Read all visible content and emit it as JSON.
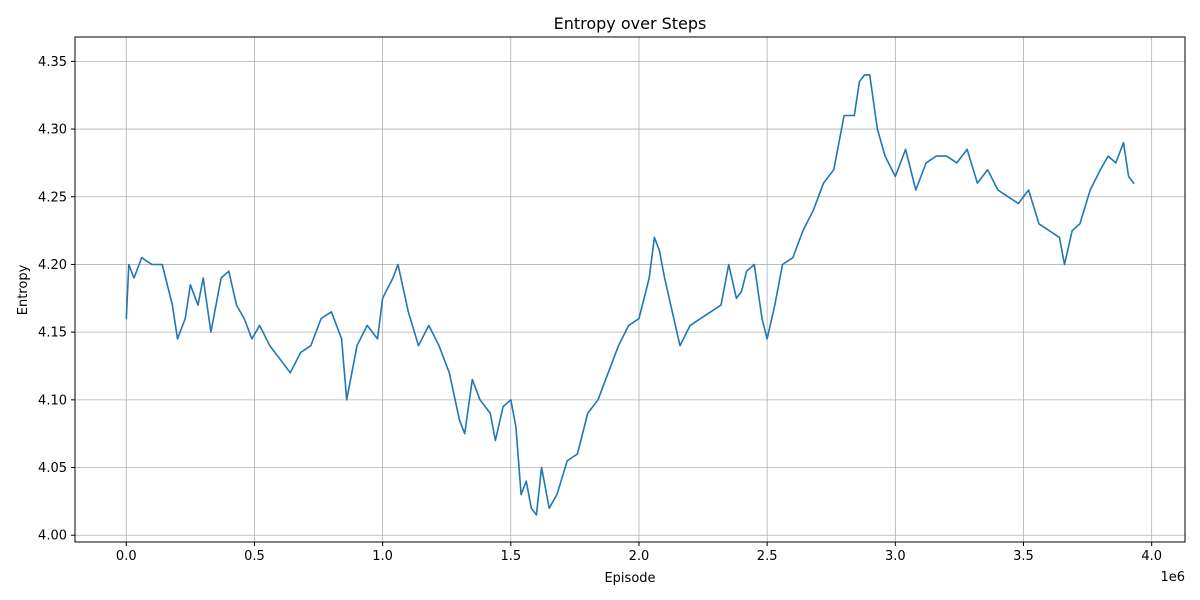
{
  "chart_data": {
    "type": "line",
    "title": "Entropy over Steps",
    "xlabel": "Episode",
    "ylabel": "Entropy",
    "x_offset_label": "1e6",
    "xlim": [
      -200000,
      4130000
    ],
    "ylim": [
      3.995,
      4.368
    ],
    "x_ticks": [
      0,
      500000,
      1000000,
      1500000,
      2000000,
      2500000,
      3000000,
      3500000,
      4000000
    ],
    "x_tick_labels": [
      "0.0",
      "0.5",
      "1.0",
      "1.5",
      "2.0",
      "2.5",
      "3.0",
      "3.5",
      "4.0"
    ],
    "y_ticks": [
      4.0,
      4.05,
      4.1,
      4.15,
      4.2,
      4.25,
      4.3,
      4.35
    ],
    "y_tick_labels": [
      "4.00",
      "4.05",
      "4.10",
      "4.15",
      "4.20",
      "4.25",
      "4.30",
      "4.35"
    ],
    "grid": true,
    "series": [
      {
        "color": "#1f77b4",
        "x": [
          0,
          10000,
          30000,
          60000,
          100000,
          140000,
          180000,
          200000,
          230000,
          250000,
          280000,
          300000,
          330000,
          370000,
          400000,
          430000,
          460000,
          490000,
          520000,
          560000,
          600000,
          640000,
          680000,
          720000,
          760000,
          800000,
          840000,
          860000,
          900000,
          940000,
          980000,
          1000000,
          1040000,
          1060000,
          1100000,
          1140000,
          1180000,
          1220000,
          1260000,
          1300000,
          1320000,
          1350000,
          1380000,
          1420000,
          1440000,
          1470000,
          1500000,
          1520000,
          1540000,
          1560000,
          1580000,
          1600000,
          1620000,
          1650000,
          1680000,
          1720000,
          1760000,
          1800000,
          1840000,
          1880000,
          1920000,
          1960000,
          2000000,
          2040000,
          2060000,
          2080000,
          2100000,
          2130000,
          2160000,
          2200000,
          2240000,
          2280000,
          2320000,
          2350000,
          2380000,
          2400000,
          2420000,
          2450000,
          2480000,
          2500000,
          2530000,
          2560000,
          2600000,
          2640000,
          2680000,
          2720000,
          2760000,
          2800000,
          2840000,
          2860000,
          2880000,
          2900000,
          2930000,
          2960000,
          3000000,
          3040000,
          3080000,
          3120000,
          3160000,
          3200000,
          3240000,
          3280000,
          3320000,
          3360000,
          3400000,
          3440000,
          3480000,
          3520000,
          3560000,
          3600000,
          3640000,
          3660000,
          3690000,
          3720000,
          3760000,
          3800000,
          3830000,
          3860000,
          3890000,
          3910000,
          3930000
        ],
        "y": [
          4.16,
          4.2,
          4.19,
          4.205,
          4.2,
          4.2,
          4.17,
          4.145,
          4.16,
          4.185,
          4.17,
          4.19,
          4.15,
          4.19,
          4.195,
          4.17,
          4.16,
          4.145,
          4.155,
          4.14,
          4.13,
          4.12,
          4.135,
          4.14,
          4.16,
          4.165,
          4.145,
          4.1,
          4.14,
          4.155,
          4.145,
          4.175,
          4.19,
          4.2,
          4.165,
          4.14,
          4.155,
          4.14,
          4.12,
          4.085,
          4.075,
          4.115,
          4.1,
          4.09,
          4.07,
          4.095,
          4.1,
          4.08,
          4.03,
          4.04,
          4.02,
          4.015,
          4.05,
          4.02,
          4.03,
          4.055,
          4.06,
          4.09,
          4.1,
          4.12,
          4.14,
          4.155,
          4.16,
          4.19,
          4.22,
          4.21,
          4.19,
          4.165,
          4.14,
          4.155,
          4.16,
          4.165,
          4.17,
          4.2,
          4.175,
          4.18,
          4.195,
          4.2,
          4.16,
          4.145,
          4.17,
          4.2,
          4.205,
          4.225,
          4.24,
          4.26,
          4.27,
          4.31,
          4.31,
          4.335,
          4.34,
          4.34,
          4.3,
          4.28,
          4.265,
          4.285,
          4.255,
          4.275,
          4.28,
          4.28,
          4.275,
          4.285,
          4.26,
          4.27,
          4.255,
          4.25,
          4.245,
          4.255,
          4.23,
          4.225,
          4.22,
          4.2,
          4.225,
          4.23,
          4.255,
          4.27,
          4.28,
          4.275,
          4.29,
          4.265,
          4.26
        ]
      }
    ]
  }
}
